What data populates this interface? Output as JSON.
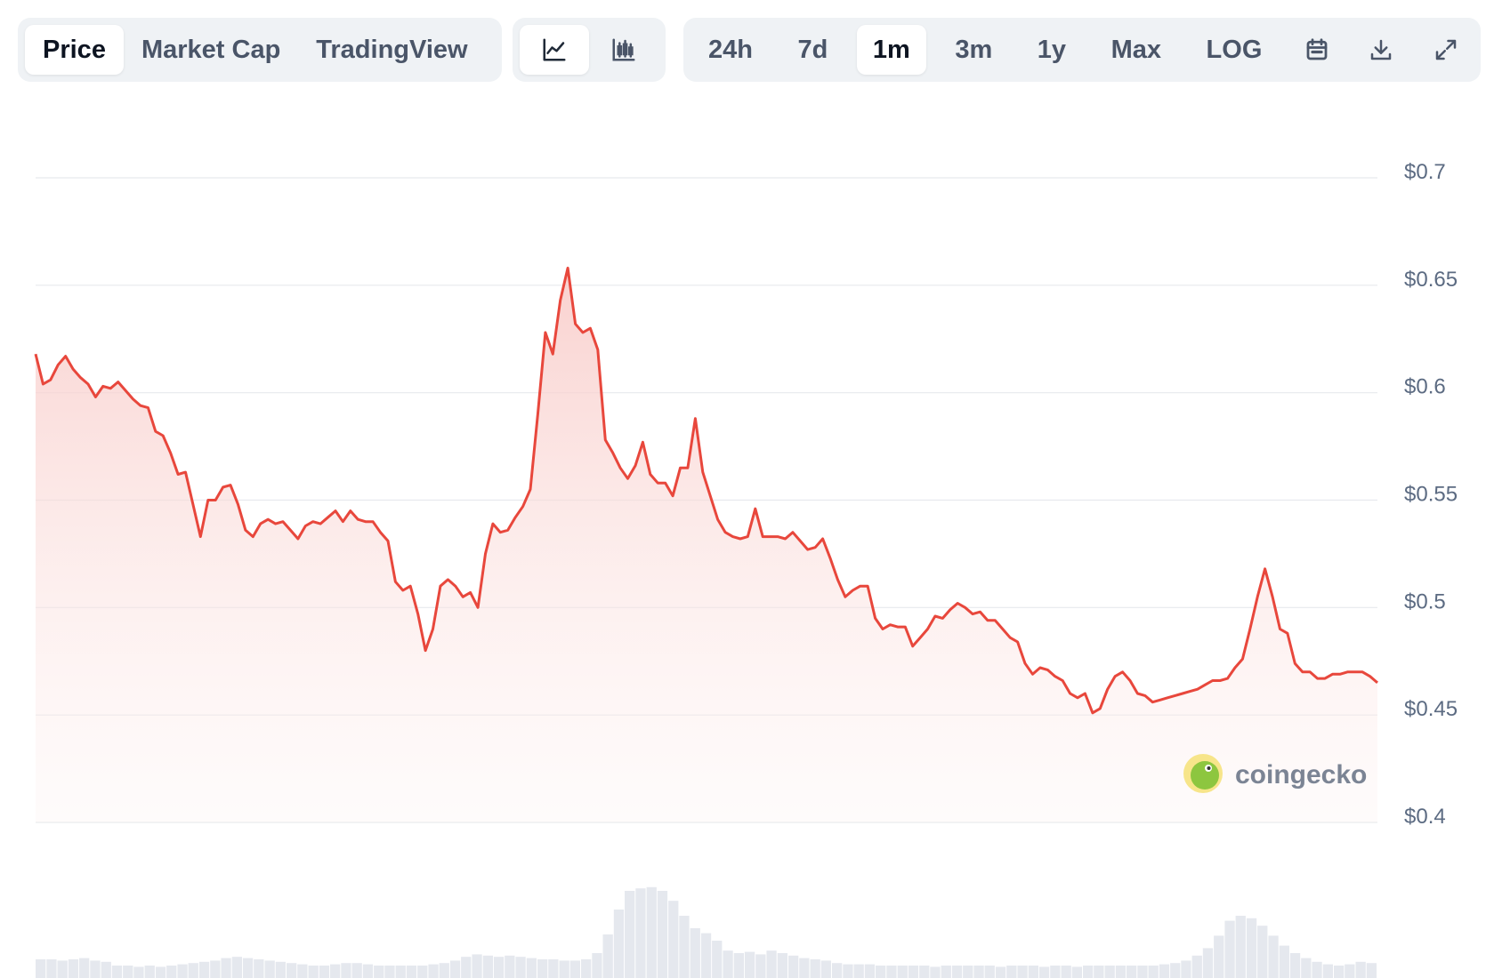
{
  "toolbar": {
    "metric_tabs": [
      {
        "label": "Price",
        "active": true
      },
      {
        "label": "Market Cap",
        "active": false
      },
      {
        "label": "TradingView",
        "active": false
      }
    ],
    "chart_type_buttons": [
      {
        "icon": "line-chart-icon",
        "active": true
      },
      {
        "icon": "candlestick-chart-icon",
        "active": false
      }
    ],
    "ranges": [
      {
        "label": "24h",
        "active": false
      },
      {
        "label": "7d",
        "active": false
      },
      {
        "label": "1m",
        "active": true
      },
      {
        "label": "3m",
        "active": false
      },
      {
        "label": "1y",
        "active": false
      },
      {
        "label": "Max",
        "active": false
      },
      {
        "label": "LOG",
        "active": false
      }
    ],
    "icon_buttons": [
      "calendar-icon",
      "download-icon",
      "fullscreen-icon"
    ]
  },
  "watermark": {
    "text": "coingecko",
    "icon": "coingecko-logo-icon"
  },
  "colors": {
    "line": "#e8473c",
    "fill_top": "#f8c9c6",
    "grid": "#e7eaee",
    "active_tab_bg": "#ffffff",
    "group_bg": "#eff2f5",
    "volume": "#e5e8ee"
  },
  "chart_data": {
    "type": "area",
    "y_ticks": [
      {
        "value": 0.7,
        "label": "$0.7"
      },
      {
        "value": 0.65,
        "label": "$0.65"
      },
      {
        "value": 0.6,
        "label": "$0.6"
      },
      {
        "value": 0.55,
        "label": "$0.55"
      },
      {
        "value": 0.5,
        "label": "$0.5"
      },
      {
        "value": 0.45,
        "label": "$0.45"
      },
      {
        "value": 0.4,
        "label": "$0.4"
      }
    ],
    "ylim": [
      0.4,
      0.7
    ],
    "grid": true,
    "series": [
      {
        "values": [
          0.618,
          0.604,
          0.606,
          0.613,
          0.617,
          0.611,
          0.607,
          0.604,
          0.598,
          0.603,
          0.602,
          0.605,
          0.601,
          0.597,
          0.594,
          0.593,
          0.582,
          0.58,
          0.572,
          0.562,
          0.563,
          0.548,
          0.533,
          0.55,
          0.55,
          0.556,
          0.557,
          0.548,
          0.536,
          0.533,
          0.539,
          0.541,
          0.539,
          0.54,
          0.536,
          0.532,
          0.538,
          0.54,
          0.539,
          0.542,
          0.545,
          0.54,
          0.545,
          0.541,
          0.54,
          0.54,
          0.535,
          0.531,
          0.512,
          0.508,
          0.51,
          0.497,
          0.48,
          0.49,
          0.51,
          0.513,
          0.51,
          0.505,
          0.507,
          0.5,
          0.525,
          0.539,
          0.535,
          0.536,
          0.542,
          0.547,
          0.555,
          0.59,
          0.628,
          0.618,
          0.643,
          0.658,
          0.632,
          0.628,
          0.63,
          0.62,
          0.578,
          0.572,
          0.565,
          0.56,
          0.566,
          0.577,
          0.562,
          0.558,
          0.558,
          0.552,
          0.565,
          0.565,
          0.588,
          0.563,
          0.552,
          0.541,
          0.535,
          0.533,
          0.532,
          0.533,
          0.546,
          0.533,
          0.533,
          0.533,
          0.532,
          0.535,
          0.531,
          0.527,
          0.528,
          0.532,
          0.523,
          0.513,
          0.505,
          0.508,
          0.51,
          0.51,
          0.495,
          0.49,
          0.492,
          0.491,
          0.491,
          0.482,
          0.486,
          0.49,
          0.496,
          0.495,
          0.499,
          0.502,
          0.5,
          0.497,
          0.498,
          0.494,
          0.494,
          0.49,
          0.486,
          0.484,
          0.474,
          0.469,
          0.472,
          0.471,
          0.468,
          0.466,
          0.46,
          0.458,
          0.46,
          0.451,
          0.453,
          0.462,
          0.468,
          0.47,
          0.466,
          0.46,
          0.459,
          0.456,
          0.457,
          0.458,
          0.459,
          0.46,
          0.461,
          0.462,
          0.464,
          0.466,
          0.466,
          0.467,
          0.472,
          0.476,
          0.49,
          0.505,
          0.518,
          0.505,
          0.49,
          0.488,
          0.474,
          0.47,
          0.47,
          0.467,
          0.467,
          0.469,
          0.469,
          0.47,
          0.47,
          0.47,
          0.468,
          0.465
        ]
      }
    ],
    "volume_relative": [
      0.15,
      0.15,
      0.14,
      0.15,
      0.16,
      0.14,
      0.13,
      0.1,
      0.1,
      0.09,
      0.1,
      0.09,
      0.1,
      0.11,
      0.12,
      0.13,
      0.14,
      0.16,
      0.17,
      0.16,
      0.15,
      0.14,
      0.13,
      0.12,
      0.11,
      0.1,
      0.1,
      0.11,
      0.12,
      0.12,
      0.11,
      0.1,
      0.1,
      0.1,
      0.1,
      0.1,
      0.11,
      0.12,
      0.14,
      0.17,
      0.19,
      0.18,
      0.17,
      0.18,
      0.17,
      0.16,
      0.15,
      0.15,
      0.14,
      0.14,
      0.15,
      0.2,
      0.35,
      0.55,
      0.7,
      0.72,
      0.73,
      0.7,
      0.62,
      0.5,
      0.4,
      0.36,
      0.3,
      0.22,
      0.2,
      0.21,
      0.19,
      0.22,
      0.2,
      0.18,
      0.16,
      0.15,
      0.14,
      0.12,
      0.11,
      0.11,
      0.11,
      0.1,
      0.1,
      0.1,
      0.1,
      0.1,
      0.09,
      0.1,
      0.1,
      0.1,
      0.1,
      0.1,
      0.09,
      0.1,
      0.1,
      0.1,
      0.09,
      0.1,
      0.1,
      0.09,
      0.1,
      0.1,
      0.1,
      0.1,
      0.1,
      0.1,
      0.1,
      0.11,
      0.12,
      0.14,
      0.18,
      0.24,
      0.34,
      0.46,
      0.5,
      0.48,
      0.42,
      0.34,
      0.26,
      0.2,
      0.16,
      0.13,
      0.11,
      0.1,
      0.11,
      0.13,
      0.12
    ]
  }
}
